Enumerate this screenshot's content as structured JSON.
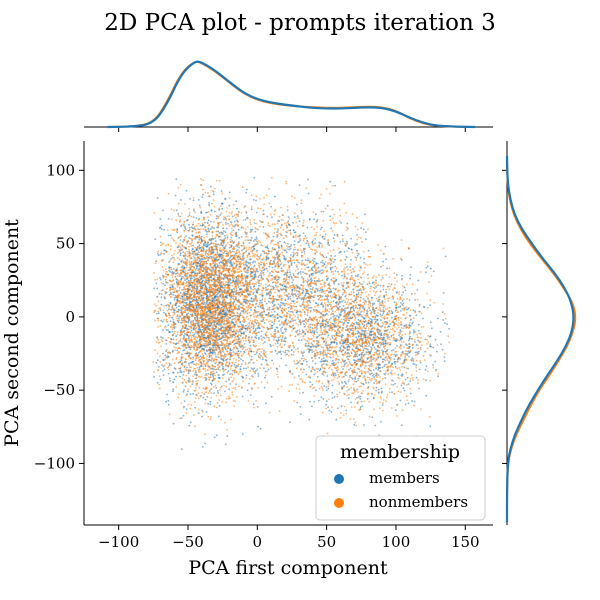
{
  "chart_data": {
    "type": "scatter",
    "title": "2D PCA plot - prompts iteration 3",
    "xlabel": "PCA first component",
    "ylabel": "PCA second component",
    "xlim": [
      -125,
      170
    ],
    "ylim": [
      -142,
      120
    ],
    "x_ticks": [
      -100,
      -50,
      0,
      50,
      100,
      150
    ],
    "y_ticks": [
      -100,
      -50,
      0,
      50,
      100
    ],
    "x_tick_labels": [
      "−100",
      "−50",
      "0",
      "50",
      "100",
      "150"
    ],
    "y_tick_labels": [
      "−100",
      "−50",
      "0",
      "50",
      "100"
    ],
    "legend": {
      "title": "membership",
      "placement": "bottom-right",
      "entries": [
        "members",
        "nonmembers"
      ]
    },
    "colors": {
      "members": "#1f77b4",
      "nonmembers": "#ff7f0e"
    },
    "series": [
      {
        "name": "members",
        "description": "dense scatter cloud",
        "clusters": [
          {
            "cx": -35,
            "cy": 10,
            "sx": 18,
            "sy": 30
          },
          {
            "cx": 75,
            "cy": -15,
            "sx": 25,
            "sy": 22
          },
          {
            "cx": 20,
            "cy": 20,
            "sx": 30,
            "sy": 28
          }
        ]
      },
      {
        "name": "nonmembers",
        "description": "dense scatter cloud",
        "clusters": [
          {
            "cx": -35,
            "cy": 10,
            "sx": 18,
            "sy": 30
          },
          {
            "cx": 75,
            "cy": -15,
            "sx": 25,
            "sy": 22
          },
          {
            "cx": 20,
            "cy": 20,
            "sx": 30,
            "sy": 28
          }
        ]
      }
    ],
    "marginal_x_density": {
      "x": [
        -108,
        -90,
        -75,
        -65,
        -55,
        -45,
        -40,
        -30,
        -20,
        -10,
        0,
        10,
        20,
        30,
        40,
        50,
        60,
        70,
        80,
        90,
        100,
        110,
        120,
        130,
        145,
        157
      ],
      "members": [
        0,
        0.005,
        0.05,
        0.35,
        0.8,
        1.0,
        0.98,
        0.85,
        0.68,
        0.52,
        0.42,
        0.37,
        0.34,
        0.31,
        0.29,
        0.28,
        0.28,
        0.29,
        0.3,
        0.29,
        0.24,
        0.14,
        0.06,
        0.02,
        0.003,
        0
      ],
      "nonmembers": [
        0,
        0.006,
        0.06,
        0.38,
        0.82,
        1.0,
        0.97,
        0.84,
        0.67,
        0.51,
        0.41,
        0.36,
        0.33,
        0.31,
        0.3,
        0.29,
        0.29,
        0.3,
        0.31,
        0.3,
        0.25,
        0.13,
        0.05,
        0.015,
        0.002,
        0
      ]
    },
    "marginal_y_density": {
      "y": [
        -140,
        -120,
        -100,
        -90,
        -80,
        -70,
        -60,
        -50,
        -40,
        -30,
        -20,
        -10,
        0,
        10,
        20,
        30,
        40,
        50,
        60,
        70,
        80,
        90,
        100,
        110
      ],
      "members": [
        0,
        0,
        0.01,
        0.05,
        0.12,
        0.22,
        0.33,
        0.46,
        0.6,
        0.75,
        0.88,
        0.97,
        1.0,
        0.96,
        0.86,
        0.71,
        0.53,
        0.37,
        0.22,
        0.11,
        0.05,
        0.015,
        0.003,
        0
      ],
      "nonmembers": [
        0,
        0,
        0.015,
        0.06,
        0.14,
        0.25,
        0.36,
        0.48,
        0.63,
        0.77,
        0.9,
        0.99,
        1.03,
        0.98,
        0.84,
        0.69,
        0.51,
        0.34,
        0.2,
        0.1,
        0.04,
        0.012,
        0.002,
        0
      ]
    }
  }
}
